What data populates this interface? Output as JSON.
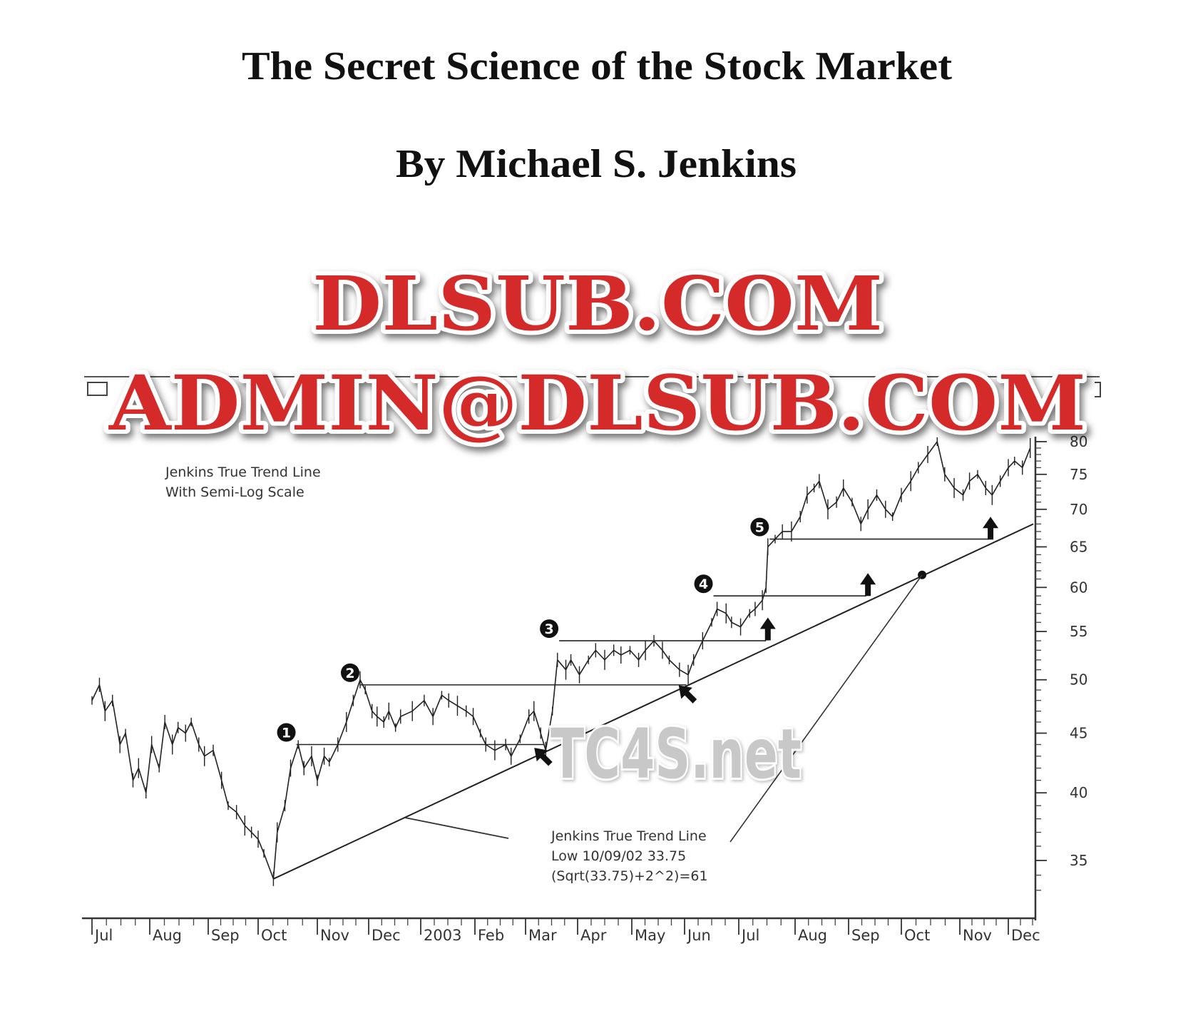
{
  "document": {
    "title": "The Secret Science of the Stock Market",
    "author": "By Michael S. Jenkins"
  },
  "watermarks": {
    "line1": "DLSUB.COM",
    "line2": "ADMIN@DLSUB.COM",
    "overlay": "TC4S.net",
    "colors": {
      "fill": "#d42a2a",
      "outline": "#ffffff",
      "edge": "#8e1414",
      "overlay": "#c8c8c8"
    }
  },
  "chart_data": {
    "type": "line",
    "title": "",
    "note_lines": [
      "Jenkins True Trend Line",
      "With Semi-Log Scale"
    ],
    "annotation_lines": [
      "Jenkins True Trend Line",
      "Low 10/09/02 33.75",
      "(Sqrt(33.75)+2^2)=61"
    ],
    "y_scale": "log",
    "ylim": [
      33,
      80
    ],
    "y_ticks": [
      35,
      40,
      45,
      50,
      55,
      60,
      65,
      70,
      75,
      80
    ],
    "y_tick_labels": [
      "35",
      "40",
      "45",
      "50",
      "55",
      "60",
      "65",
      "70",
      "75",
      "80"
    ],
    "x_tick_labels": [
      "Jul",
      "Aug",
      "Sep",
      "Oct",
      "Nov",
      "Dec",
      "2003",
      "Feb",
      "Mar",
      "Apr",
      "May",
      "Jun",
      "Jul",
      "Aug",
      "Sep",
      "Oct",
      "Nov",
      "Dec"
    ],
    "x_range": [
      "2002-07-01",
      "2003-12-17"
    ],
    "grid": false,
    "price_series": [
      [
        "2002-07-01",
        48
      ],
      [
        "2002-07-05",
        49.5
      ],
      [
        "2002-07-08",
        47
      ],
      [
        "2002-07-12",
        48
      ],
      [
        "2002-07-16",
        44
      ],
      [
        "2002-07-19",
        45
      ],
      [
        "2002-07-23",
        41
      ],
      [
        "2002-07-26",
        42
      ],
      [
        "2002-07-30",
        40
      ],
      [
        "2002-08-02",
        44
      ],
      [
        "2002-08-06",
        42
      ],
      [
        "2002-08-09",
        46
      ],
      [
        "2002-08-13",
        44
      ],
      [
        "2002-08-16",
        45.5
      ],
      [
        "2002-08-20",
        45
      ],
      [
        "2002-08-23",
        46
      ],
      [
        "2002-08-27",
        44
      ],
      [
        "2002-08-30",
        43
      ],
      [
        "2002-09-04",
        43.5
      ],
      [
        "2002-09-09",
        41
      ],
      [
        "2002-09-13",
        39
      ],
      [
        "2002-09-18",
        38.5
      ],
      [
        "2002-09-23",
        37.5
      ],
      [
        "2002-09-27",
        37
      ],
      [
        "2002-10-01",
        36.5
      ],
      [
        "2002-10-04",
        35.5
      ],
      [
        "2002-10-09",
        33.75
      ],
      [
        "2002-10-11",
        37
      ],
      [
        "2002-10-15",
        39
      ],
      [
        "2002-10-18",
        42
      ],
      [
        "2002-10-22",
        44
      ],
      [
        "2002-10-25",
        42
      ],
      [
        "2002-10-29",
        43
      ],
      [
        "2002-11-01",
        41
      ],
      [
        "2002-11-05",
        43
      ],
      [
        "2002-11-08",
        42.5
      ],
      [
        "2002-11-13",
        44
      ],
      [
        "2002-11-18",
        46
      ],
      [
        "2002-11-22",
        48
      ],
      [
        "2002-11-26",
        50
      ],
      [
        "2002-11-29",
        49
      ],
      [
        "2002-12-03",
        47
      ],
      [
        "2002-12-06",
        46.5
      ],
      [
        "2002-12-10",
        46
      ],
      [
        "2002-12-13",
        47
      ],
      [
        "2002-12-17",
        45.5
      ],
      [
        "2002-12-20",
        46.5
      ],
      [
        "2002-12-27",
        47
      ],
      [
        "2003-01-03",
        48
      ],
      [
        "2003-01-08",
        46.5
      ],
      [
        "2003-01-13",
        48.5
      ],
      [
        "2003-01-17",
        48
      ],
      [
        "2003-01-22",
        47.5
      ],
      [
        "2003-01-27",
        47
      ],
      [
        "2003-01-31",
        46.5
      ],
      [
        "2003-02-04",
        45
      ],
      [
        "2003-02-07",
        44
      ],
      [
        "2003-02-12",
        43.5
      ],
      [
        "2003-02-18",
        44
      ],
      [
        "2003-02-21",
        43
      ],
      [
        "2003-02-26",
        44.5
      ],
      [
        "2003-03-03",
        46.5
      ],
      [
        "2003-03-06",
        47
      ],
      [
        "2003-03-10",
        45
      ],
      [
        "2003-03-13",
        43.5
      ],
      [
        "2003-03-17",
        47
      ],
      [
        "2003-03-20",
        52
      ],
      [
        "2003-03-25",
        51
      ],
      [
        "2003-03-28",
        52
      ],
      [
        "2003-04-02",
        50.5
      ],
      [
        "2003-04-07",
        52
      ],
      [
        "2003-04-11",
        53
      ],
      [
        "2003-04-16",
        52
      ],
      [
        "2003-04-21",
        53
      ],
      [
        "2003-04-25",
        52.5
      ],
      [
        "2003-04-30",
        53
      ],
      [
        "2003-05-05",
        52
      ],
      [
        "2003-05-09",
        53
      ],
      [
        "2003-05-14",
        54
      ],
      [
        "2003-05-19",
        53
      ],
      [
        "2003-05-23",
        52
      ],
      [
        "2003-05-29",
        51
      ],
      [
        "2003-06-03",
        50.5
      ],
      [
        "2003-06-06",
        52
      ],
      [
        "2003-06-11",
        54
      ],
      [
        "2003-06-16",
        56
      ],
      [
        "2003-06-19",
        57.5
      ],
      [
        "2003-06-24",
        57
      ],
      [
        "2003-06-27",
        56
      ],
      [
        "2003-07-02",
        55.5
      ],
      [
        "2003-07-07",
        57
      ],
      [
        "2003-07-10",
        57.5
      ],
      [
        "2003-07-14",
        58.5
      ],
      [
        "2003-07-16",
        60
      ],
      [
        "2003-07-17",
        65
      ],
      [
        "2003-07-21",
        66
      ],
      [
        "2003-07-25",
        67
      ],
      [
        "2003-07-30",
        67
      ],
      [
        "2003-08-04",
        69
      ],
      [
        "2003-08-08",
        72
      ],
      [
        "2003-08-12",
        73
      ],
      [
        "2003-08-15",
        74
      ],
      [
        "2003-08-20",
        70
      ],
      [
        "2003-08-25",
        71
      ],
      [
        "2003-08-29",
        73
      ],
      [
        "2003-09-03",
        71
      ],
      [
        "2003-09-08",
        68
      ],
      [
        "2003-09-12",
        70
      ],
      [
        "2003-09-17",
        72
      ],
      [
        "2003-09-22",
        70
      ],
      [
        "2003-09-26",
        69
      ],
      [
        "2003-10-01",
        72
      ],
      [
        "2003-10-06",
        74
      ],
      [
        "2003-10-10",
        76
      ],
      [
        "2003-10-15",
        78
      ],
      [
        "2003-10-20",
        80
      ],
      [
        "2003-10-24",
        75
      ],
      [
        "2003-10-29",
        73
      ],
      [
        "2003-11-03",
        72
      ],
      [
        "2003-11-07",
        74
      ],
      [
        "2003-11-12",
        75
      ],
      [
        "2003-11-17",
        73
      ],
      [
        "2003-11-21",
        72
      ],
      [
        "2003-11-26",
        74
      ],
      [
        "2003-12-01",
        76
      ],
      [
        "2003-12-05",
        77
      ],
      [
        "2003-12-10",
        76
      ],
      [
        "2003-12-15",
        79
      ]
    ],
    "trend_line": [
      [
        "2002-10-09",
        33.75
      ],
      [
        "2003-12-17",
        68
      ]
    ],
    "levels": [
      {
        "label": "1",
        "price": 44,
        "start": "2002-10-21",
        "end": "2003-03-12"
      },
      {
        "label": "2",
        "price": 49.5,
        "start": "2002-11-26",
        "end": "2003-06-02"
      },
      {
        "label": "3",
        "price": 54,
        "start": "2003-03-21",
        "end": "2003-07-16"
      },
      {
        "label": "4",
        "price": 59,
        "start": "2003-06-17",
        "end": "2003-09-11"
      },
      {
        "label": "5",
        "price": 66,
        "start": "2003-07-18",
        "end": "2003-11-19"
      }
    ],
    "arrows": [
      {
        "date": "2003-03-14",
        "price": 42.6,
        "dir": "up-left"
      },
      {
        "date": "2003-06-05",
        "price": 48.2,
        "dir": "up-left"
      },
      {
        "date": "2003-07-17",
        "price": 54.5,
        "dir": "up"
      },
      {
        "date": "2003-09-12",
        "price": 59.5,
        "dir": "up"
      },
      {
        "date": "2003-11-20",
        "price": 66.5,
        "dir": "up"
      }
    ],
    "pivot_dot": [
      "2003-10-12",
      61.5
    ]
  }
}
